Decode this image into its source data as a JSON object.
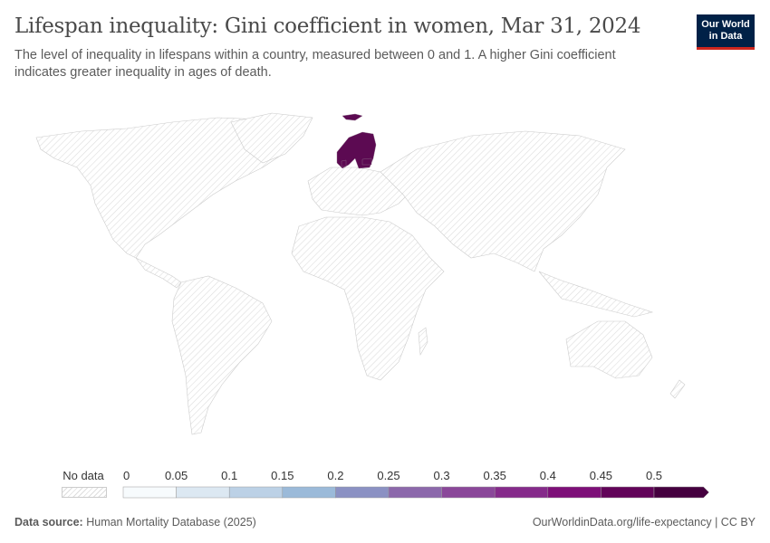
{
  "header": {
    "title": "Lifespan inequality: Gini coefficient in women, Mar 31, 2024",
    "subtitle": "The level of inequality in lifespans within a country, measured between 0 and 1. A higher Gini coefficient indicates greater inequality in ages of death."
  },
  "logo": {
    "line1": "Our World",
    "line2": "in Data"
  },
  "map": {
    "highlighted_regions": [
      "Norway",
      "Sweden",
      "Finland",
      "Denmark",
      "Estonia",
      "Svalbard"
    ],
    "highlight_color": "#5c0a52",
    "no_data_pattern": "hatched"
  },
  "legend": {
    "no_data_label": "No data",
    "ticks": [
      "0",
      "0.05",
      "0.1",
      "0.15",
      "0.2",
      "0.25",
      "0.3",
      "0.35",
      "0.4",
      "0.45",
      "0.5"
    ],
    "colors": [
      "#f7fbfd",
      "#dce8f2",
      "#bcd1e6",
      "#9bbad9",
      "#8b91c3",
      "#8c68ab",
      "#8a4799",
      "#852a8a",
      "#7d0f78",
      "#620459",
      "#45003f"
    ]
  },
  "footer": {
    "source_label": "Data source:",
    "source": "Human Mortality Database (2025)",
    "link": "OurWorldinData.org/life-expectancy | CC BY"
  }
}
